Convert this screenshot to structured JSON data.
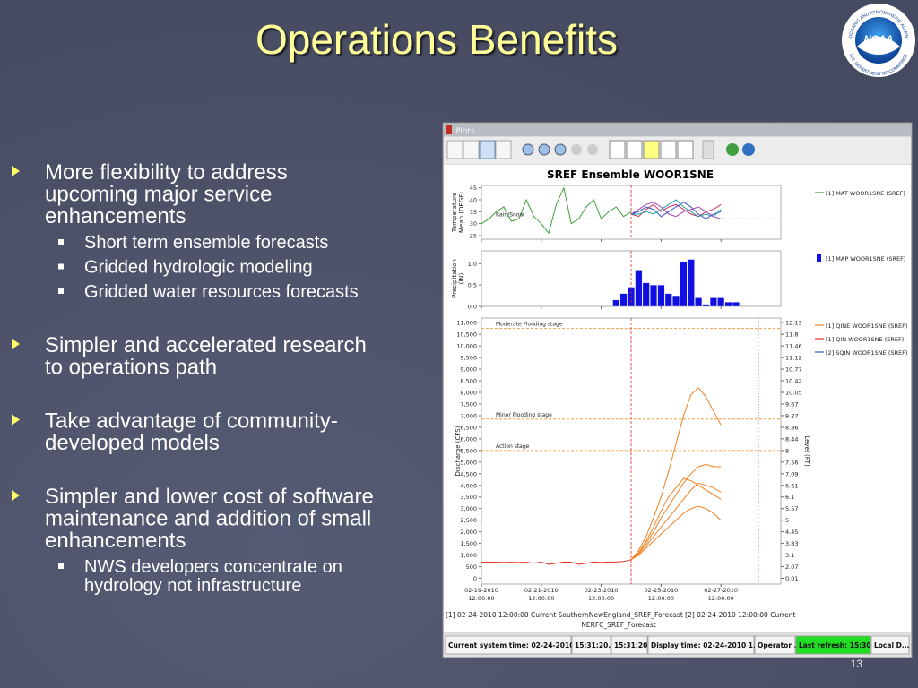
{
  "header": {
    "title": "Operations Benefits"
  },
  "logo": {
    "name": "NOAA",
    "ring_top": "NATIONAL OCEANIC AND ATMOSPHERIC ADMINISTRATION",
    "ring_bottom": "U.S. DEPARTMENT OF COMMERCE"
  },
  "bullets": [
    {
      "lines": [
        "More flexibility to address",
        "upcoming major service",
        "enhancements"
      ],
      "sub": [
        {
          "lines": [
            "Short term ensemble forecasts"
          ]
        },
        {
          "lines": [
            "Gridded hydrologic modeling"
          ]
        },
        {
          "lines": [
            "Gridded water resources forecasts"
          ]
        }
      ]
    },
    {
      "lines": [
        "Simpler and accelerated research",
        "to operations path"
      ]
    },
    {
      "lines": [
        "Take advantage of community-",
        "developed models"
      ]
    },
    {
      "lines": [
        "Simpler and lower cost of software",
        "maintenance and addition of small",
        "enhancements"
      ],
      "sub": [
        {
          "lines": [
            "NWS developers concentrate on",
            "hydrology not infrastructure"
          ]
        }
      ]
    }
  ],
  "slide_number": "13",
  "window": {
    "title": "Plots",
    "caption": [
      "[1] 02-24-2010 12:00:00 Current SouthernNewEngland_SREF_Forecast [2] 02-24-2010 12:00:00 Current",
      "NERFC_SREF_Forecast"
    ],
    "status": [
      "Current system time: 02-24-2010...",
      "15:31:20...",
      "15:31:20...",
      "Display time: 02-24-2010 1...",
      "Operator ...",
      "Last refresh: 15:30:...",
      "Local D..."
    ]
  },
  "chart_data": {
    "type": "line",
    "title": "SREF Ensemble WOOR1SNE",
    "x": [
      "02-19-2010 12:00:00",
      "02-19-2010 18:00:00",
      "02-20-2010 00:00:00",
      "02-20-2010 06:00:00",
      "02-20-2010 12:00:00",
      "02-20-2010 18:00:00",
      "02-21-2010 00:00:00",
      "02-21-2010 06:00:00",
      "02-21-2010 12:00:00",
      "02-21-2010 18:00:00",
      "02-22-2010 00:00:00",
      "02-22-2010 06:00:00",
      "02-22-2010 12:00:00",
      "02-22-2010 18:00:00",
      "02-23-2010 00:00:00",
      "02-23-2010 06:00:00",
      "02-23-2010 12:00:00",
      "02-23-2010 18:00:00",
      "02-24-2010 00:00:00",
      "02-24-2010 06:00:00",
      "02-24-2010 12:00:00",
      "02-24-2010 18:00:00",
      "02-25-2010 00:00:00",
      "02-25-2010 06:00:00",
      "02-25-2010 12:00:00",
      "02-25-2010 18:00:00",
      "02-26-2010 00:00:00",
      "02-26-2010 06:00:00",
      "02-26-2010 12:00:00",
      "02-26-2010 18:00:00",
      "02-27-2010 00:00:00",
      "02-27-2010 06:00:00",
      "02-27-2010 12:00:00",
      "02-27-2010 18:00:00",
      "02-28-2010 00:00:00"
    ],
    "xlim": [
      "02-19-2010 12:00:00",
      "03-01-2010 12:00:00"
    ],
    "xticks": [
      "02-19-2010 12:00:00",
      "02-21-2010 12:00:00",
      "02-23-2010 12:00:00",
      "02-25-2010 12:00:00",
      "02-27-2010 12:00:00"
    ],
    "markers": [
      {
        "x": "02-24-2010 12:00:00",
        "color": "#e02828",
        "panels": [
          0,
          1,
          2
        ]
      },
      {
        "x": "02-28-2010 18:00:00",
        "color": "#3a3ad0",
        "panels": [
          2
        ]
      }
    ],
    "panels": [
      {
        "type": "line",
        "ylabel": [
          "Temperature",
          "Mean (DEGF)"
        ],
        "ylim": [
          23.5,
          46
        ],
        "yticks": [
          25,
          30,
          35,
          40,
          45
        ],
        "thresholds": [
          {
            "value": 32,
            "label": "Rain/Snow"
          }
        ],
        "series": [
          {
            "name": "[1] MAT WOOR1SNE (SREF)",
            "color": "#3aa03a",
            "values": [
              30,
              32,
              35,
              37,
              31,
              32,
              40,
              33,
              30,
              26,
              38,
              45,
              30,
              32,
              37,
              40,
              32,
              35,
              37,
              33,
              35,
              null,
              null,
              null,
              null,
              null,
              null,
              null,
              null,
              null,
              null,
              null,
              null,
              null,
              null
            ],
            "member_colors": [
              "#d03060",
              "#3050d0",
              "#20a0a0",
              "#a040c0"
            ],
            "members": [
              [
                null,
                null,
                null,
                null,
                null,
                null,
                null,
                null,
                null,
                null,
                null,
                null,
                null,
                null,
                null,
                null,
                null,
                null,
                null,
                null,
                34,
                33,
                36,
                38,
                35,
                37,
                38,
                36,
                34,
                33,
                35,
                36,
                38,
                null,
                null
              ],
              [
                null,
                null,
                null,
                null,
                null,
                null,
                null,
                null,
                null,
                null,
                null,
                null,
                null,
                null,
                null,
                null,
                null,
                null,
                null,
                null,
                34,
                35,
                37,
                36,
                33,
                35,
                37,
                39,
                37,
                34,
                32,
                34,
                35,
                null,
                null
              ],
              [
                null,
                null,
                null,
                null,
                null,
                null,
                null,
                null,
                null,
                null,
                null,
                null,
                null,
                null,
                null,
                null,
                null,
                null,
                null,
                null,
                34,
                34,
                35,
                34,
                36,
                38,
                40,
                37,
                35,
                33,
                34,
                33,
                36,
                null,
                null
              ],
              [
                null,
                null,
                null,
                null,
                null,
                null,
                null,
                null,
                null,
                null,
                null,
                null,
                null,
                null,
                null,
                null,
                null,
                null,
                null,
                null,
                34,
                36,
                38,
                39,
                37,
                34,
                33,
                35,
                36,
                37,
                35,
                33,
                32,
                null,
                null
              ]
            ]
          }
        ]
      },
      {
        "type": "bar",
        "ylabel": [
          "Precipitation",
          "(IN)"
        ],
        "ylim": [
          0,
          1.3
        ],
        "yticks": [
          {
            "value": 0,
            "label": "0.0"
          },
          0.5,
          {
            "value": 1,
            "label": "1.0"
          }
        ],
        "series": [
          {
            "name": "[1] MAP WOOR1SNE (SREF)",
            "color": "#1010e0",
            "values": [
              null,
              null,
              null,
              null,
              null,
              null,
              null,
              null,
              null,
              null,
              null,
              null,
              null,
              null,
              null,
              null,
              null,
              null,
              0.15,
              0.3,
              0.45,
              0.85,
              0.55,
              0.5,
              0.5,
              0.3,
              0.25,
              1.05,
              1.1,
              0.2,
              0.05,
              0.2,
              0.2,
              0.1,
              0.1
            ]
          }
        ]
      },
      {
        "type": "line",
        "ylabel": "Discharge (CFS)",
        "ylim": [
          -250,
          11200
        ],
        "yticks": [
          0,
          500,
          {
            "value": 1000,
            "label": "1,000"
          },
          {
            "value": 1500,
            "label": "1,500"
          },
          {
            "value": 2000,
            "label": "2,000"
          },
          {
            "value": 2500,
            "label": "2,500"
          },
          {
            "value": 3000,
            "label": "3,000"
          },
          {
            "value": 3500,
            "label": "3,500"
          },
          {
            "value": 4000,
            "label": "4,000"
          },
          {
            "value": 4500,
            "label": "4,500"
          },
          {
            "value": 5000,
            "label": "5,000"
          },
          {
            "value": 5500,
            "label": "5,500"
          },
          {
            "value": 6000,
            "label": "6,000"
          },
          {
            "value": 6500,
            "label": "6,500"
          },
          {
            "value": 7000,
            "label": "7,000"
          },
          {
            "value": 7500,
            "label": "7,500"
          },
          {
            "value": 8000,
            "label": "8,000"
          },
          {
            "value": 8500,
            "label": "8,500"
          },
          {
            "value": 9000,
            "label": "9,000"
          },
          {
            "value": 9500,
            "label": "9,500"
          },
          {
            "value": 10000,
            "label": "10,000"
          },
          {
            "value": 10500,
            "label": "10,500"
          },
          {
            "value": 11000,
            "label": "11,000"
          }
        ],
        "y2label": "Level (FT)",
        "y2ticks": [
          0.01,
          2.07,
          3.1,
          3.83,
          4.45,
          5,
          5.57,
          6.1,
          6.61,
          7.09,
          7.56,
          8,
          8.44,
          8.86,
          9.27,
          9.67,
          10.05,
          10.42,
          10.77,
          11.12,
          11.46,
          11.8,
          12.13
        ],
        "thresholds": [
          {
            "value": 10750,
            "label": "Moderate Flooding stage"
          },
          {
            "value": 6850,
            "label": "Minor Flooding stage"
          },
          {
            "value": 5500,
            "label": "Action stage"
          }
        ],
        "series": [
          {
            "name": "[1] QINE WOOR1SNE (SREF)",
            "color": "#f08020",
            "members": [
              [
                null,
                null,
                null,
                null,
                null,
                null,
                null,
                null,
                null,
                null,
                null,
                null,
                null,
                null,
                null,
                null,
                null,
                null,
                null,
                null,
                800,
                1200,
                1800,
                2600,
                3500,
                4600,
                5800,
                7000,
                7900,
                8200,
                7800,
                7200,
                6600,
                null,
                null
              ],
              [
                null,
                null,
                null,
                null,
                null,
                null,
                null,
                null,
                null,
                null,
                null,
                null,
                null,
                null,
                null,
                null,
                null,
                null,
                null,
                null,
                800,
                1100,
                1500,
                2000,
                2600,
                3100,
                3600,
                4100,
                4500,
                4800,
                4900,
                4800,
                4800,
                null,
                null
              ],
              [
                null,
                null,
                null,
                null,
                null,
                null,
                null,
                null,
                null,
                null,
                null,
                null,
                null,
                null,
                null,
                null,
                null,
                null,
                null,
                null,
                800,
                1050,
                1400,
                1800,
                2200,
                2600,
                3000,
                3400,
                3800,
                4100,
                4000,
                3900,
                3700,
                null,
                null
              ],
              [
                null,
                null,
                null,
                null,
                null,
                null,
                null,
                null,
                null,
                null,
                null,
                null,
                null,
                null,
                null,
                null,
                null,
                null,
                null,
                null,
                800,
                1000,
                1300,
                1600,
                1900,
                2200,
                2500,
                2800,
                3000,
                3100,
                3000,
                2800,
                2500,
                null,
                null
              ],
              [
                null,
                null,
                null,
                null,
                null,
                null,
                null,
                null,
                null,
                null,
                null,
                null,
                null,
                null,
                null,
                null,
                null,
                null,
                null,
                null,
                800,
                1100,
                1600,
                2200,
                2900,
                3500,
                3900,
                4300,
                4200,
                4000,
                3800,
                3600,
                3400,
                null,
                null
              ]
            ]
          },
          {
            "name": "[1] QIN WOOR1SNE (SREF)",
            "color": "#e03020",
            "values": [
              700,
              700,
              690,
              680,
              690,
              680,
              690,
              650,
              700,
              600,
              650,
              700,
              690,
              600,
              650,
              700,
              680,
              700,
              700,
              720,
              800,
              null,
              null,
              null,
              null,
              null,
              null,
              null,
              null,
              null,
              null,
              null,
              null,
              null,
              null
            ]
          },
          {
            "name": "[2] SQIN WOOR1SNE (SREF)",
            "color": "#3050d0"
          }
        ]
      }
    ]
  }
}
